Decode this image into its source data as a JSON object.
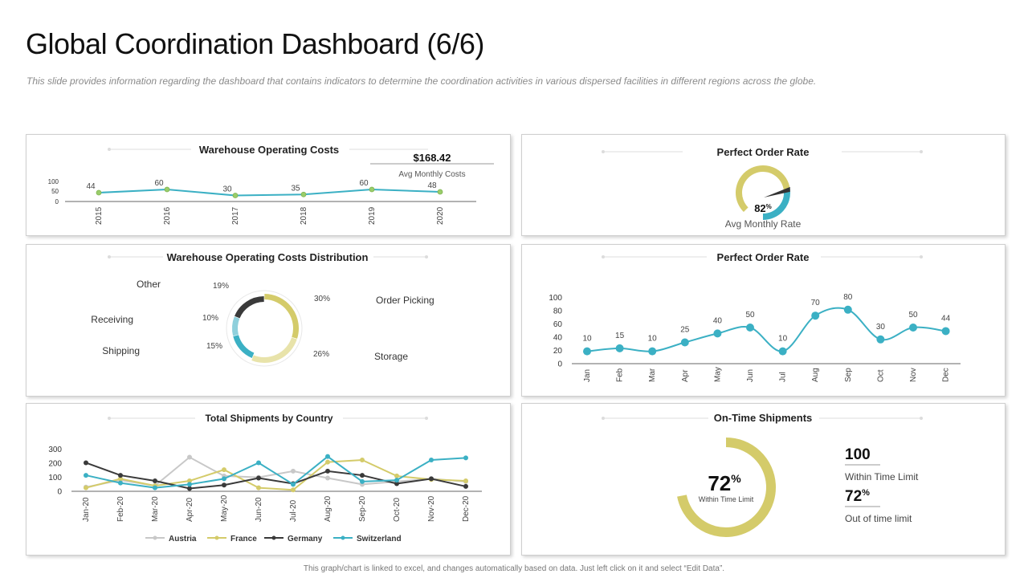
{
  "page": {
    "title": "Global Coordination Dashboard (6/6)",
    "subtitle": "This slide provides  information regarding  the dashboard  that contains indicators to determine  the coordination  activities in various  dispersed facilities in different regions across the globe.",
    "footer": "This graph/chart is linked to excel, and changes automatically  based on data. Just left click on it and select “Edit Data”."
  },
  "colors": {
    "teal": "#3bb0c4",
    "olive": "#d4cb6a",
    "olive_light": "#e8e3aa",
    "dark": "#3a3a3a",
    "gray": "#c8c8c8",
    "green_marker": "#9acd6a"
  },
  "warehouse_costs": {
    "title": "Warehouse Operating Costs",
    "kpi_value": "$168.42",
    "kpi_label": "Avg Monthly Costs",
    "yticks": [
      "100",
      "50",
      "0"
    ]
  },
  "perfect_order_gauge": {
    "title": "Perfect Order Rate",
    "value": 82,
    "value_text": "82",
    "unit": "%",
    "label": "Avg Monthly Rate"
  },
  "distribution": {
    "title": "Warehouse Operating Costs Distribution"
  },
  "perfect_order_line": {
    "title": "Perfect Order Rate",
    "yticks": [
      "100",
      "80",
      "60",
      "40",
      "20",
      "0"
    ]
  },
  "shipments_by_country": {
    "title": "Total Shipments by Country",
    "yticks": [
      "300",
      "200",
      "100",
      "0"
    ]
  },
  "on_time": {
    "title": "On-Time Shipments",
    "donut_value": 72,
    "donut_text": "72",
    "unit": "%",
    "donut_label": "Within Time Limit",
    "stat1_value": "100",
    "stat1_label": "Within Time Limit",
    "stat2_value": "72",
    "stat2_unit": "%",
    "stat2_label": "Out of time limit"
  },
  "chart_data": [
    {
      "type": "line",
      "title": "Warehouse Operating Costs",
      "categories": [
        "2015",
        "2016",
        "2017",
        "2018",
        "2019",
        "2020"
      ],
      "values": [
        44,
        60,
        30,
        35,
        60,
        48
      ],
      "ylim": [
        0,
        100
      ]
    },
    {
      "type": "pie",
      "title": "Warehouse Operating Costs Distribution",
      "categories": [
        "Order Picking",
        "Storage",
        "Shipping",
        "Receiving",
        "Other"
      ],
      "values": [
        30,
        26,
        15,
        10,
        19
      ],
      "labels": [
        "30%",
        "26%",
        "15%",
        "10%",
        "19%"
      ]
    },
    {
      "type": "line",
      "title": "Perfect Order Rate",
      "categories": [
        "Jan",
        "Feb",
        "Mar",
        "Apr",
        "May",
        "Jun",
        "Jul",
        "Aug",
        "Sep",
        "Oct",
        "Nov",
        "Dec"
      ],
      "values": [
        10,
        15,
        10,
        25,
        40,
        50,
        10,
        70,
        80,
        30,
        50,
        44
      ],
      "ylim": [
        0,
        100
      ]
    },
    {
      "type": "line",
      "title": "Total Shipments by Country",
      "categories": [
        "Jan-20",
        "Feb-20",
        "Mar-20",
        "Apr-20",
        "May-20",
        "Jun-20",
        "Jul-20",
        "Aug-20",
        "Sep-20",
        "Oct-20",
        "Nov-20",
        "Dec-20"
      ],
      "ylim": [
        0,
        300
      ],
      "legend": "bottom",
      "series": [
        {
          "name": "Austria",
          "values": [
            30,
            80,
            40,
            245,
            110,
            100,
            145,
            95,
            50,
            70,
            90,
            70
          ]
        },
        {
          "name": "France",
          "values": [
            25,
            90,
            40,
            75,
            155,
            25,
            10,
            210,
            225,
            110,
            85,
            75
          ]
        },
        {
          "name": "Germany",
          "values": [
            205,
            115,
            75,
            20,
            45,
            95,
            55,
            145,
            115,
            55,
            90,
            35
          ]
        },
        {
          "name": "Switzerland",
          "values": [
            115,
            60,
            25,
            50,
            90,
            205,
            50,
            250,
            70,
            80,
            225,
            240
          ]
        }
      ]
    },
    {
      "type": "pie",
      "title": "On-Time Shipments",
      "categories": [
        "Within Time Limit"
      ],
      "values": [
        72
      ]
    }
  ]
}
